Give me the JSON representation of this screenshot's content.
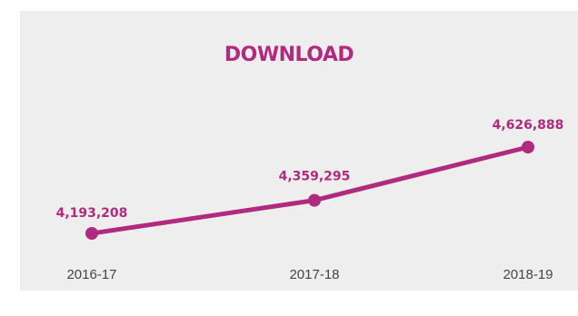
{
  "chart_data": {
    "type": "line",
    "title": "DOWNLOAD",
    "categories": [
      "2016-17",
      "2017-18",
      "2018-19"
    ],
    "series": [
      {
        "values": [
          4193208,
          4359295,
          4626888
        ],
        "labels": [
          "4,193,208",
          "4,359,295",
          "4,626,888"
        ]
      }
    ],
    "color": "#b02a7d",
    "grid": false,
    "xlabel": "",
    "ylabel": ""
  }
}
